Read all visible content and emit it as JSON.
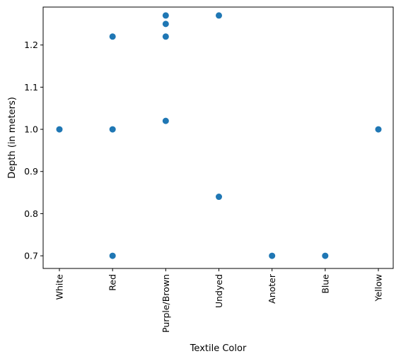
{
  "chart_data": {
    "type": "scatter",
    "title": "",
    "xlabel": "Textile Color",
    "ylabel": "Depth (in meters)",
    "categories": [
      "White",
      "Red",
      "Purple/Brown",
      "Undyed",
      "Anoter",
      "Blue",
      "Yellow"
    ],
    "yticks": [
      "0.7",
      "0.8",
      "0.9",
      "1.0",
      "1.1",
      "1.2"
    ],
    "ylim": [
      0.67,
      1.29
    ],
    "color": "#1f77b4",
    "grid": false,
    "points": [
      {
        "x": "White",
        "y": 1.0
      },
      {
        "x": "Red",
        "y": 1.22
      },
      {
        "x": "Red",
        "y": 1.0
      },
      {
        "x": "Red",
        "y": 0.7
      },
      {
        "x": "Purple/Brown",
        "y": 1.27
      },
      {
        "x": "Purple/Brown",
        "y": 1.25
      },
      {
        "x": "Purple/Brown",
        "y": 1.22
      },
      {
        "x": "Purple/Brown",
        "y": 1.02
      },
      {
        "x": "Undyed",
        "y": 1.27
      },
      {
        "x": "Undyed",
        "y": 0.84
      },
      {
        "x": "Anoter",
        "y": 0.7
      },
      {
        "x": "Blue",
        "y": 0.7
      },
      {
        "x": "Yellow",
        "y": 1.0
      }
    ]
  }
}
